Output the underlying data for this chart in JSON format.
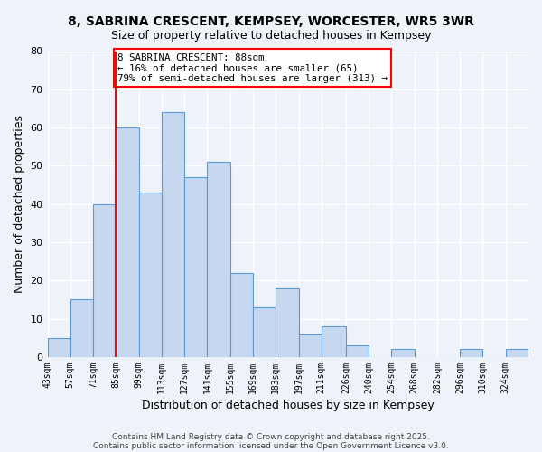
{
  "title": "8, SABRINA CRESCENT, KEMPSEY, WORCESTER, WR5 3WR",
  "subtitle": "Size of property relative to detached houses in Kempsey",
  "xlabel": "Distribution of detached houses by size in Kempsey",
  "ylabel": "Number of detached properties",
  "bar_labels": [
    "43sqm",
    "57sqm",
    "71sqm",
    "85sqm",
    "99sqm",
    "113sqm",
    "127sqm",
    "141sqm",
    "155sqm",
    "169sqm",
    "183sqm",
    "197sqm",
    "211sqm",
    "226sqm",
    "240sqm",
    "254sqm",
    "268sqm",
    "282sqm",
    "296sqm",
    "310sqm",
    "324sqm"
  ],
  "bar_values": [
    5,
    15,
    40,
    60,
    43,
    64,
    47,
    51,
    22,
    13,
    18,
    6,
    8,
    3,
    0,
    2,
    0,
    0,
    2,
    0,
    2
  ],
  "bin_edges": [
    43,
    57,
    71,
    85,
    99,
    113,
    127,
    141,
    155,
    169,
    183,
    197,
    211,
    226,
    240,
    254,
    268,
    282,
    296,
    310,
    324,
    338
  ],
  "bar_color": "#c5d8f0",
  "bar_edge_color": "#5b9bd5",
  "vline_x_index": 3,
  "vline_color": "red",
  "ylim": [
    0,
    80
  ],
  "yticks": [
    0,
    10,
    20,
    30,
    40,
    50,
    60,
    70,
    80
  ],
  "annotation_text": "8 SABRINA CRESCENT: 88sqm\n← 16% of detached houses are smaller (65)\n79% of semi-detached houses are larger (313) →",
  "annotation_box_color": "white",
  "annotation_box_edge": "red",
  "footer1": "Contains HM Land Registry data © Crown copyright and database right 2025.",
  "footer2": "Contains public sector information licensed under the Open Government Licence v3.0.",
  "bg_color": "#eef2f9",
  "grid_color": "white"
}
